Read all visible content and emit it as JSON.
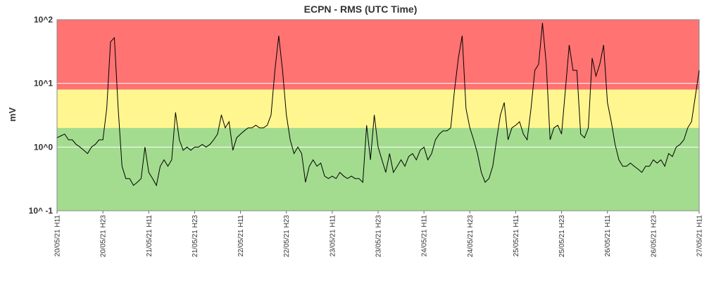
{
  "chart_data": {
    "type": "line",
    "title": "ECPN - RMS (UTC Time)",
    "y_label": "mV",
    "log_scale": true,
    "grid": true,
    "ylim": [
      0.1,
      100
    ],
    "yticks": [
      {
        "value": 0.1,
        "label": "10^ -1"
      },
      {
        "value": 1,
        "label": "10^0"
      },
      {
        "value": 10,
        "label": "10^1"
      },
      {
        "value": 100,
        "label": "10^2"
      }
    ],
    "bands": [
      {
        "from": 0.1,
        "to": 2,
        "color": "#a3dc8f"
      },
      {
        "from": 2,
        "to": 8,
        "color": "#fff68f"
      },
      {
        "from": 8,
        "to": 100,
        "color": "#ff7373"
      }
    ],
    "categories": [
      "20/05/21 H11",
      null,
      null,
      null,
      null,
      null,
      null,
      null,
      null,
      null,
      null,
      null,
      "20/05/21 H23",
      null,
      null,
      null,
      null,
      null,
      null,
      null,
      null,
      null,
      null,
      null,
      "21/05/21 H11",
      null,
      null,
      null,
      null,
      null,
      null,
      null,
      null,
      null,
      null,
      null,
      "21/05/21 H23",
      null,
      null,
      null,
      null,
      null,
      null,
      null,
      null,
      null,
      null,
      null,
      "22/05/21 H11",
      null,
      null,
      null,
      null,
      null,
      null,
      null,
      null,
      null,
      null,
      null,
      "22/05/21 H23",
      null,
      null,
      null,
      null,
      null,
      null,
      null,
      null,
      null,
      null,
      null,
      "23/05/21 H11",
      null,
      null,
      null,
      null,
      null,
      null,
      null,
      null,
      null,
      null,
      null,
      "23/05/21 H23",
      null,
      null,
      null,
      null,
      null,
      null,
      null,
      null,
      null,
      null,
      null,
      "24/05/21 H11",
      null,
      null,
      null,
      null,
      null,
      null,
      null,
      null,
      null,
      null,
      null,
      "24/05/21 H23",
      null,
      null,
      null,
      null,
      null,
      null,
      null,
      null,
      null,
      null,
      null,
      "25/05/21 H11",
      null,
      null,
      null,
      null,
      null,
      null,
      null,
      null,
      null,
      null,
      null,
      "25/05/21 H23",
      null,
      null,
      null,
      null,
      null,
      null,
      null,
      null,
      null,
      null,
      null,
      "26/05/21 H11",
      null,
      null,
      null,
      null,
      null,
      null,
      null,
      null,
      null,
      null,
      null,
      "26/05/21 H23",
      null,
      null,
      null,
      null,
      null,
      null,
      null,
      null,
      null,
      null,
      null,
      "27/05/21 H11"
    ],
    "series": [
      {
        "color": "#000000",
        "values": [
          1.4,
          1.5,
          1.6,
          1.3,
          1.3,
          1.1,
          1.0,
          0.89,
          0.79,
          1.0,
          1.1,
          1.3,
          1.3,
          4,
          45,
          52,
          4,
          0.5,
          0.32,
          0.32,
          0.25,
          0.28,
          0.32,
          1.0,
          0.4,
          0.32,
          0.25,
          0.5,
          0.63,
          0.5,
          0.63,
          3.5,
          1.3,
          0.89,
          1.0,
          0.89,
          1.0,
          1.0,
          1.1,
          1.0,
          1.1,
          1.3,
          1.6,
          3.2,
          2.0,
          2.5,
          0.89,
          1.4,
          1.6,
          1.8,
          2.0,
          2.0,
          2.2,
          2.0,
          2.0,
          2.2,
          3.2,
          16,
          56,
          16,
          3.2,
          1.3,
          0.79,
          1.0,
          0.79,
          0.28,
          0.5,
          0.63,
          0.5,
          0.56,
          0.35,
          0.32,
          0.35,
          0.32,
          0.4,
          0.35,
          0.32,
          0.35,
          0.32,
          0.32,
          0.28,
          2.2,
          0.63,
          3.2,
          1.0,
          0.63,
          0.4,
          0.79,
          0.4,
          0.5,
          0.63,
          0.5,
          0.71,
          0.79,
          0.63,
          0.89,
          1.0,
          0.63,
          0.79,
          1.3,
          1.6,
          1.8,
          1.8,
          2.0,
          7.9,
          25,
          56,
          4,
          2.0,
          1.3,
          0.79,
          0.4,
          0.28,
          0.32,
          0.5,
          1.3,
          3.2,
          5,
          1.3,
          2.0,
          2.2,
          2.5,
          1.6,
          1.3,
          4,
          16,
          20,
          89,
          20,
          1.3,
          2.0,
          2.2,
          1.6,
          7.9,
          40,
          16,
          16,
          1.6,
          1.4,
          2.0,
          25,
          13,
          20,
          40,
          5,
          2.5,
          1.1,
          0.63,
          0.5,
          0.5,
          0.56,
          0.5,
          0.45,
          0.4,
          0.5,
          0.5,
          0.63,
          0.56,
          0.63,
          0.5,
          0.79,
          0.71,
          1.0,
          1.1,
          1.3,
          2.0,
          2.5,
          6.3,
          16
        ]
      }
    ]
  }
}
